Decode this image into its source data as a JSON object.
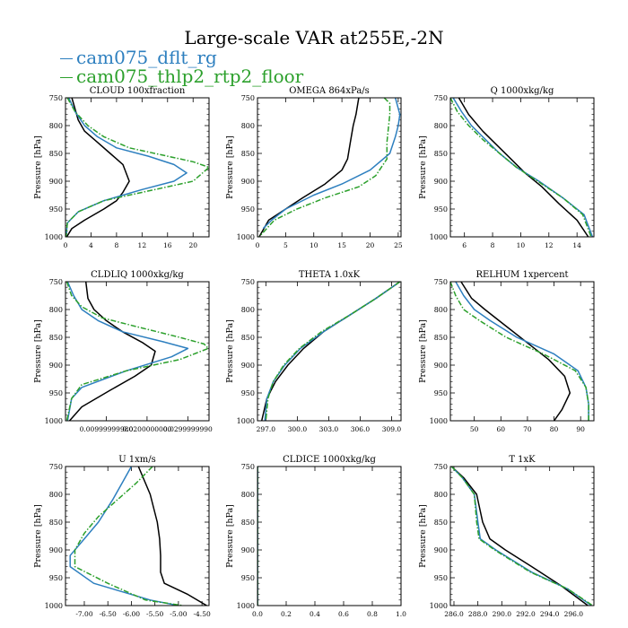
{
  "title": "Large-scale VAR at255E,-2N",
  "legend": [
    {
      "label": "cam075_dflt_rg",
      "color": "#2d7fbf",
      "dash": "solid"
    },
    {
      "label": "cam075_thlp2_rtp2_floor",
      "color": "#2ca02c",
      "dash": "dashdot"
    },
    {
      "label": "",
      "color": "#000000",
      "dash": "solid"
    }
  ],
  "y_axis_label": "Pressure [hPa]",
  "y_ticks": [
    750,
    800,
    850,
    900,
    950,
    1000
  ],
  "chart_data": [
    {
      "type": "line",
      "title": "CLOUD  100xfraction",
      "ylim": [
        1000,
        750
      ],
      "xlim": [
        0,
        22.5
      ],
      "xticks": [
        "0",
        "4",
        "8",
        "12",
        "16",
        "20"
      ],
      "xtick_vals": [
        0,
        4,
        8,
        12,
        16,
        20
      ],
      "series": [
        {
          "x": [
            0.5,
            1.5,
            3,
            5,
            8,
            13,
            17,
            19,
            17,
            12,
            6,
            2,
            0.3,
            0.1
          ],
          "y": [
            750,
            775,
            800,
            820,
            840,
            855,
            870,
            885,
            900,
            915,
            935,
            955,
            975,
            1000
          ]
        },
        {
          "x": [
            0.3,
            1.5,
            3.5,
            6,
            10,
            16,
            20,
            22.5,
            20,
            14,
            6,
            2,
            0.3,
            0.1
          ],
          "y": [
            750,
            775,
            800,
            820,
            840,
            855,
            865,
            875,
            900,
            915,
            935,
            955,
            975,
            1000
          ]
        },
        {
          "x": [
            1,
            2,
            3,
            5,
            7,
            9,
            10,
            9,
            8,
            6,
            3,
            1,
            0.2
          ],
          "y": [
            750,
            790,
            810,
            830,
            850,
            870,
            900,
            920,
            935,
            950,
            970,
            985,
            1000
          ]
        }
      ]
    },
    {
      "type": "line",
      "title": "OMEGA  864xPa/s",
      "ylim": [
        1000,
        750
      ],
      "xlim": [
        0,
        25.5
      ],
      "xticks": [
        "0",
        "5",
        "10",
        "15",
        "20",
        "25"
      ],
      "xtick_vals": [
        0,
        5,
        10,
        15,
        20,
        25
      ],
      "series": [
        {
          "x": [
            24.5,
            25.3,
            25,
            24.5,
            23.5,
            20,
            15,
            10,
            5,
            2.5,
            1
          ],
          "y": [
            750,
            780,
            800,
            820,
            850,
            880,
            905,
            925,
            950,
            970,
            985
          ]
        },
        {
          "x": [
            22.5,
            23.5,
            23.5,
            23.3,
            23,
            23,
            21,
            18,
            12,
            7,
            3,
            0.3
          ],
          "y": [
            750,
            760,
            780,
            800,
            830,
            860,
            890,
            910,
            930,
            950,
            970,
            1000
          ]
        },
        {
          "x": [
            18,
            17.5,
            17,
            16.5,
            16,
            15,
            12,
            8,
            5,
            2,
            0.3
          ],
          "y": [
            750,
            780,
            800,
            830,
            860,
            880,
            905,
            930,
            950,
            970,
            1000
          ]
        }
      ]
    },
    {
      "type": "line",
      "title": "Q  1000xkg/kg",
      "ylim": [
        1000,
        750
      ],
      "xlim": [
        5,
        15.2
      ],
      "xticks": [
        "6",
        "8",
        "10",
        "12",
        "14"
      ],
      "xtick_vals": [
        6,
        8,
        10,
        12,
        14
      ],
      "series": [
        {
          "x": [
            5.2,
            5.8,
            6.5,
            7.5,
            8.5,
            9.7,
            11.3,
            13,
            14.5,
            15.1
          ],
          "y": [
            750,
            775,
            800,
            825,
            850,
            875,
            900,
            930,
            960,
            1000
          ]
        },
        {
          "x": [
            5,
            5.5,
            6.3,
            7.3,
            8.5,
            9.7,
            11.2,
            13,
            14.4,
            15
          ],
          "y": [
            750,
            775,
            800,
            825,
            850,
            875,
            900,
            930,
            960,
            1000
          ]
        },
        {
          "x": [
            5.6,
            6.3,
            7.3,
            8.3,
            9.3,
            10.3,
            11.5,
            12.7,
            14,
            14.8
          ],
          "y": [
            750,
            780,
            810,
            835,
            860,
            885,
            910,
            940,
            970,
            1000
          ]
        }
      ]
    },
    {
      "type": "line",
      "title": "CLDLIQ  1000xkg/kg",
      "ylim": [
        1000,
        750
      ],
      "xlim": [
        0,
        0.0352
      ],
      "xticks": [
        "0.00999999980",
        "0.0200000000",
        "0.0299999990"
      ],
      "xtick_vals": [
        0.01,
        0.02,
        0.03
      ],
      "series": [
        {
          "x": [
            0.0005,
            0.002,
            0.004,
            0.008,
            0.014,
            0.024,
            0.03,
            0.026,
            0.015,
            0.004,
            0.0015,
            0.0005
          ],
          "y": [
            750,
            775,
            800,
            820,
            840,
            858,
            870,
            885,
            910,
            940,
            960,
            1000
          ]
        },
        {
          "x": [
            0.0003,
            0.0015,
            0.004,
            0.009,
            0.017,
            0.028,
            0.034,
            0.035,
            0.028,
            0.015,
            0.004,
            0.0015,
            0.0003
          ],
          "y": [
            750,
            775,
            795,
            815,
            830,
            850,
            862,
            870,
            890,
            910,
            935,
            960,
            1000
          ]
        },
        {
          "x": [
            0.005,
            0.0055,
            0.007,
            0.01,
            0.014,
            0.019,
            0.022,
            0.021,
            0.017,
            0.011,
            0.004,
            0.001
          ],
          "y": [
            750,
            780,
            800,
            820,
            840,
            860,
            875,
            900,
            920,
            945,
            975,
            1000
          ]
        }
      ]
    },
    {
      "type": "line",
      "title": "THETA  1.0xK",
      "ylim": [
        1000,
        750
      ],
      "xlim": [
        296.2,
        309.9
      ],
      "xticks": [
        "297.0",
        "300.0",
        "303.0",
        "306.0",
        "309.0"
      ],
      "xtick_vals": [
        297,
        300,
        303,
        306,
        309
      ],
      "series": [
        {
          "x": [
            309.8,
            307.5,
            305,
            302.5,
            300.3,
            298.8,
            297.7,
            297.1,
            296.9
          ],
          "y": [
            750,
            780,
            810,
            840,
            870,
            900,
            930,
            960,
            1000
          ]
        },
        {
          "x": [
            309.8,
            307.5,
            305,
            302.3,
            300.2,
            298.7,
            297.7,
            297.2,
            297
          ],
          "y": [
            750,
            780,
            810,
            840,
            870,
            900,
            930,
            960,
            1000
          ]
        },
        {
          "x": [
            309.8,
            307.5,
            305,
            302.5,
            300.6,
            299.1,
            297.9,
            297.1,
            296.6
          ],
          "y": [
            750,
            780,
            810,
            840,
            870,
            900,
            930,
            960,
            1000
          ]
        }
      ]
    },
    {
      "type": "line",
      "title": "RELHUM  1xpercent",
      "ylim": [
        1000,
        750
      ],
      "xlim": [
        41,
        95
      ],
      "xticks": [
        "50",
        "60",
        "70",
        "80",
        "90"
      ],
      "xtick_vals": [
        50,
        60,
        70,
        80,
        90
      ],
      "series": [
        {
          "x": [
            43,
            46,
            50,
            56,
            66,
            80,
            89,
            92,
            93,
            93
          ],
          "y": [
            750,
            775,
            800,
            820,
            850,
            880,
            910,
            940,
            970,
            1000
          ]
        },
        {
          "x": [
            41,
            43,
            46,
            52,
            62,
            76,
            88,
            92,
            93,
            93
          ],
          "y": [
            750,
            775,
            800,
            820,
            850,
            880,
            910,
            940,
            970,
            1000
          ]
        },
        {
          "x": [
            45,
            49,
            54,
            62,
            70,
            78,
            84,
            86,
            83,
            80
          ],
          "y": [
            750,
            780,
            800,
            830,
            860,
            890,
            920,
            950,
            980,
            1000
          ]
        }
      ]
    },
    {
      "type": "line",
      "title": "U  1xm/s",
      "ylim": [
        1000,
        750
      ],
      "xlim": [
        -7.4,
        -4.35
      ],
      "xticks": [
        "-7.00",
        "-6.50",
        "-6.00",
        "-5.50",
        "-5.00",
        "-4.50"
      ],
      "xtick_vals": [
        -7,
        -6.5,
        -6,
        -5.5,
        -5,
        -4.5
      ],
      "series": [
        {
          "x": [
            -6.0,
            -6.2,
            -6.4,
            -6.7,
            -7.0,
            -7.3,
            -7.3,
            -6.8,
            -5.6,
            -5.0
          ],
          "y": [
            750,
            780,
            810,
            850,
            880,
            910,
            930,
            960,
            990,
            1000
          ]
        },
        {
          "x": [
            -5.55,
            -5.9,
            -6.3,
            -6.7,
            -7.0,
            -7.2,
            -7.2,
            -6.5,
            -5.7,
            -4.9
          ],
          "y": [
            750,
            780,
            810,
            840,
            870,
            900,
            930,
            960,
            990,
            1000
          ]
        },
        {
          "x": [
            -5.85,
            -5.6,
            -5.45,
            -5.4,
            -5.38,
            -5.38,
            -5.3,
            -4.8,
            -4.4
          ],
          "y": [
            750,
            800,
            850,
            880,
            910,
            940,
            960,
            980,
            1000
          ]
        }
      ]
    },
    {
      "type": "line",
      "title": "CLDICE  1000xkg/kg",
      "ylim": [
        1000,
        750
      ],
      "xlim": [
        0,
        1
      ],
      "xticks": [
        "0.0",
        "0.2",
        "0.4",
        "0.6",
        "0.8",
        "1.0"
      ],
      "xtick_vals": [
        0,
        0.2,
        0.4,
        0.6,
        0.8,
        1
      ],
      "series": [
        {
          "x": [
            0,
            0
          ],
          "y": [
            750,
            1000
          ]
        },
        {
          "x": [
            0,
            0
          ],
          "y": [
            750,
            1000
          ]
        },
        {
          "x": [
            0,
            0
          ],
          "y": [
            750,
            1000
          ]
        }
      ]
    },
    {
      "type": "line",
      "title": "T  1xK",
      "ylim": [
        1000,
        750
      ],
      "xlim": [
        285.7,
        297.7
      ],
      "xticks": [
        "286.0",
        "288.0",
        "290.0",
        "292.0",
        "294.0",
        "296.0"
      ],
      "xtick_vals": [
        286,
        288,
        290,
        292,
        294,
        296
      ],
      "series": [
        {
          "x": [
            285.8,
            286.7,
            287.7,
            288.0,
            288.2,
            289.5,
            292.5,
            295.5,
            297.5
          ],
          "y": [
            750,
            770,
            800,
            850,
            880,
            900,
            940,
            970,
            1000
          ]
        },
        {
          "x": [
            285.8,
            286.7,
            287.7,
            287.9,
            288.1,
            289.4,
            292.4,
            295.5,
            297.6
          ],
          "y": [
            750,
            770,
            800,
            850,
            880,
            900,
            940,
            970,
            1000
          ]
        },
        {
          "x": [
            285.8,
            286.8,
            287.9,
            288.4,
            289.0,
            290.3,
            292.5,
            295.0,
            297.2
          ],
          "y": [
            750,
            770,
            800,
            850,
            880,
            900,
            930,
            965,
            1000
          ]
        }
      ]
    }
  ]
}
